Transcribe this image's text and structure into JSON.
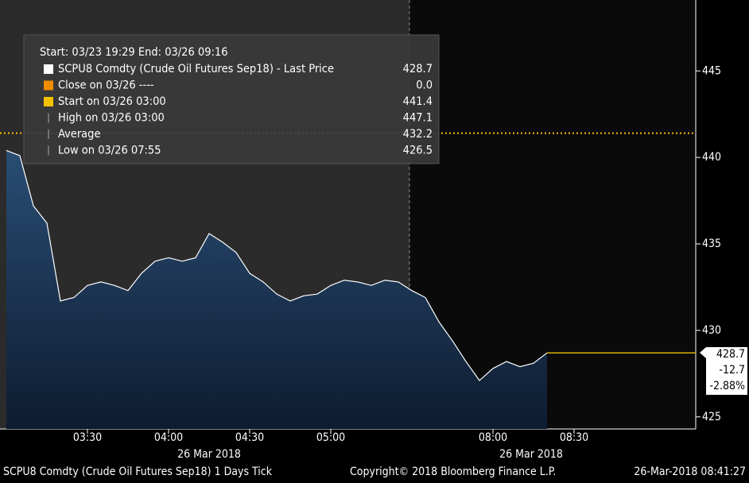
{
  "chart_data": {
    "type": "area",
    "header": "Start: 03/23 19:29 End: 03/26 09:16",
    "stats": [
      {
        "name": "SCPU8 Comdty (Crude Oil Futures Sep18) - Last Price",
        "color": "#ffffff",
        "value": 428.7
      },
      {
        "name": "Close on 03/26 ----",
        "color": "#f28c00",
        "value": 0,
        "value_label": "0.0"
      },
      {
        "name": "Start on 03/26 03:00",
        "color": "#f2c200",
        "value": 441.4
      },
      {
        "name": "High on 03/26 03:00",
        "value": 447.1
      },
      {
        "name": "Average",
        "value": 432.2
      },
      {
        "name": "Low on 03/26 07:55",
        "value": 426.5
      }
    ],
    "categories": [
      null,
      null,
      null,
      null,
      null,
      null,
      "03:30",
      null,
      null,
      null,
      null,
      null,
      "04:00",
      null,
      null,
      null,
      null,
      null,
      "04:30",
      null,
      null,
      null,
      null,
      null,
      "05:00",
      null,
      null,
      null,
      null,
      null,
      null,
      null,
      null,
      null,
      null,
      null,
      "08:00",
      null,
      null,
      null,
      null,
      null,
      "08:30",
      null,
      null,
      null,
      null,
      null,
      null,
      null,
      null,
      null
    ],
    "x_date_labels": [
      "26 Mar 2018",
      "26 Mar 2018"
    ],
    "series": [
      {
        "name": "SCPU8 Comdty",
        "color": "#ffffff",
        "fill": "#1f3e60",
        "values": [
          440.4,
          440.1,
          437.2,
          436.2,
          431.7,
          431.9,
          432.6,
          432.8,
          432.6,
          432.3,
          433.3,
          434.0,
          434.2,
          434.0,
          434.2,
          435.6,
          435.1,
          434.5,
          433.3,
          432.8,
          432.1,
          431.7,
          432.0,
          432.1,
          432.6,
          432.9,
          432.8,
          432.6,
          432.9,
          432.8,
          432.3,
          431.9,
          430.5,
          429.4,
          428.2,
          427.1,
          427.8,
          428.2,
          427.9,
          428.1,
          428.7,
          null,
          null,
          null,
          null,
          null,
          null,
          null,
          null,
          null,
          null,
          null
        ]
      }
    ],
    "ylim": [
      424.3,
      449.1
    ],
    "yticks": [
      425,
      430,
      435,
      440,
      445
    ],
    "last_box": {
      "price": 428.7,
      "change": -12.7,
      "change_pct": {
        "value": -2.88,
        "label": "-2.88%"
      }
    },
    "footer": {
      "left": "SCPU8 Comdty (Crude Oil Futures Sep18) 1 Days  Tick",
      "center": "Copyright© 2018 Bloomberg Finance L.P.",
      "right": "26-Mar-2018 08:41:27"
    }
  }
}
